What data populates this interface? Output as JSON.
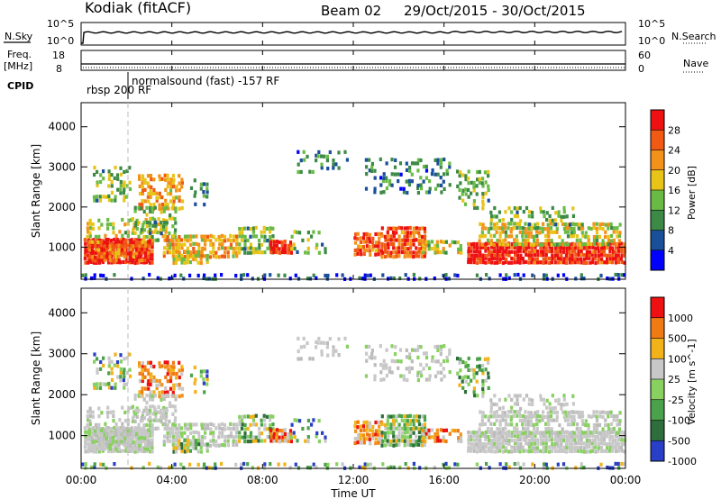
{
  "header": {
    "station": "Kodiak (fitACF)",
    "beam": "Beam 02",
    "date_range": "29/Oct/2015 - 30/Oct/2015"
  },
  "top_panels": {
    "nsky_label": "N.Sky",
    "nsearch_label": "N.Search",
    "freq_label": "Freq.",
    "freq_unit": "[MHz]",
    "nave_label": "Nave",
    "cpid_label": "CPID",
    "noise_ticks": [
      "10^5",
      "10^0"
    ],
    "freq_ticks": [
      "18",
      "8"
    ],
    "nave_ticks": [
      "60",
      "0"
    ],
    "cpid_entries": [
      "normalsound (fast) -157 RF",
      "rbsp 200 RF"
    ]
  },
  "chart_data": [
    {
      "type": "heatmap",
      "name": "power",
      "ylabel": "Slant Range [km]",
      "yticks": [
        1000,
        2000,
        3000,
        4000
      ],
      "ylim": [
        200,
        4600
      ],
      "colorbar_label": "Power [dB]",
      "colorbar_ticks": [
        4,
        8,
        12,
        16,
        20,
        24,
        28
      ],
      "colors": [
        "#0000ff",
        "#1a4f9a",
        "#3c8a46",
        "#6abb45",
        "#e8c418",
        "#f2921a",
        "#f05a14",
        "#ee1111"
      ]
    },
    {
      "type": "heatmap",
      "name": "velocity",
      "ylabel": "Slant Range [km]",
      "yticks": [
        1000,
        2000,
        3000,
        4000
      ],
      "ylim": [
        200,
        4600
      ],
      "colorbar_label": "Velocity [m s^-1]",
      "colorbar_ticks": [
        1000,
        500,
        100,
        25,
        -25,
        -100,
        -500,
        -1000
      ],
      "colors": [
        "#2a3fc8",
        "#2d6e3c",
        "#4ba24a",
        "#88d060",
        "#c8c8c8",
        "#f2b21a",
        "#f07a14",
        "#ee1111"
      ]
    }
  ],
  "time_axis": {
    "xlabel": "Time UT",
    "ticks": [
      "00:00",
      "04:00",
      "08:00",
      "12:00",
      "16:00",
      "20:00",
      "00:00"
    ]
  }
}
